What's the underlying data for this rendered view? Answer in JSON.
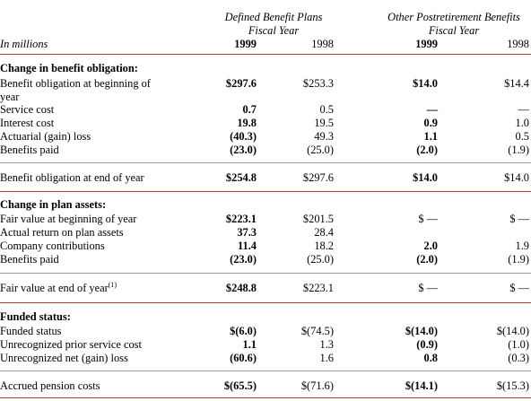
{
  "header": {
    "group1_line1": "Defined Benefit Plans",
    "group1_line2": "Fiscal Year",
    "group2_line1": "Other Postretirement Benefits",
    "group2_line2": "Fiscal Year",
    "units": "In millions",
    "y1999": "1999",
    "y1998": "1998"
  },
  "sections": {
    "obligation_title": "Change in benefit obligation:",
    "assets_title": "Change in plan assets:",
    "funded_title": "Funded status:"
  },
  "rows": {
    "bo_begin": {
      "label": "Benefit obligation at beginning of year",
      "v": [
        "$297.6",
        "$253.3",
        "$14.0",
        "$14.4"
      ]
    },
    "service": {
      "label": "Service cost",
      "v": [
        "0.7",
        "0.5",
        "—",
        "—"
      ]
    },
    "interest": {
      "label": "Interest cost",
      "v": [
        "19.8",
        "19.5",
        "0.9",
        "1.0"
      ]
    },
    "actuarial": {
      "label": "Actuarial (gain) loss",
      "v": [
        "(40.3)",
        "49.3",
        "1.1",
        "0.5"
      ]
    },
    "paid1": {
      "label": "Benefits paid",
      "v": [
        "(23.0)",
        "(25.0)",
        "(2.0)",
        "(1.9)"
      ]
    },
    "bo_end": {
      "label": "Benefit obligation at end of year",
      "v": [
        "$254.8",
        "$297.6",
        "$14.0",
        "$14.0"
      ]
    },
    "fv_begin": {
      "label": "Fair value at beginning of year",
      "v": [
        "$223.1",
        "$201.5",
        "$ —",
        "$ —"
      ]
    },
    "return": {
      "label": "Actual return on plan assets",
      "v": [
        "37.3",
        "28.4",
        "",
        ""
      ]
    },
    "contrib": {
      "label": "Company contributions",
      "v": [
        "11.4",
        "18.2",
        "2.0",
        "1.9"
      ]
    },
    "paid2": {
      "label": "Benefits paid",
      "v": [
        "(23.0)",
        "(25.0)",
        "(2.0)",
        "(1.9)"
      ]
    },
    "fv_end": {
      "label": "Fair value at end of year",
      "sup": "(1)",
      "v": [
        "$248.8",
        "$223.1",
        "$ —",
        "$ —"
      ]
    },
    "funded": {
      "label": "Funded status",
      "v": [
        "$(6.0)",
        "$(74.5)",
        "$(14.0)",
        "$(14.0)"
      ]
    },
    "prior_service": {
      "label": "Unrecognized prior service cost",
      "v": [
        "1.1",
        "1.3",
        "(0.9)",
        "(1.0)"
      ]
    },
    "net_loss": {
      "label": "Unrecognized net (gain) loss",
      "v": [
        "(60.6)",
        "1.6",
        "0.8",
        "(0.3)"
      ]
    },
    "accrued": {
      "label": "Accrued pension costs",
      "v": [
        "$(65.5)",
        "$(71.6)",
        "$(14.1)",
        "$(15.3)"
      ]
    }
  }
}
